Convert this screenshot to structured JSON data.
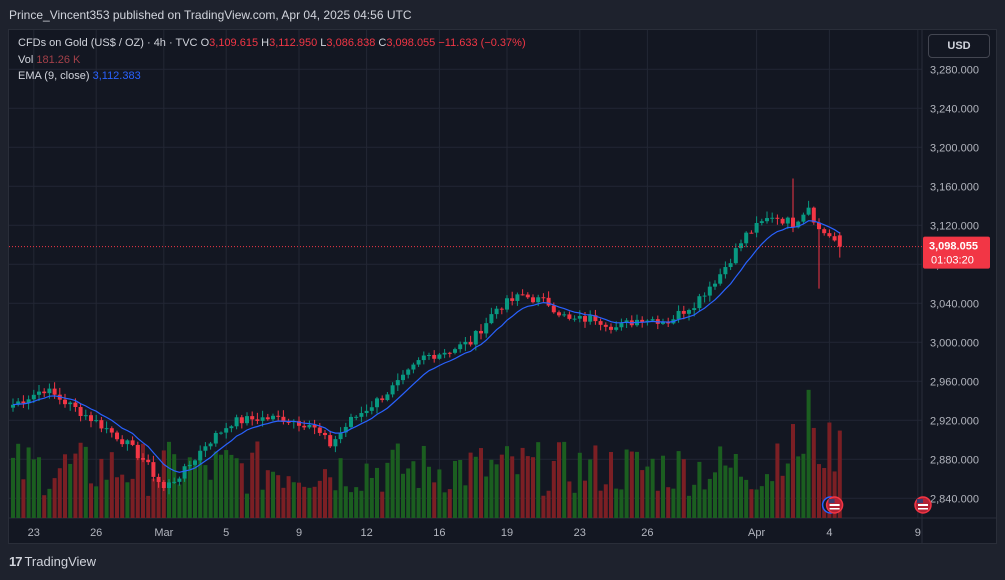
{
  "header": {
    "published_text": "Prince_Vincent353 published on TradingView.com, Apr 04, 2025 04:56 UTC"
  },
  "legend": {
    "symbol": "CFDs on Gold (US$ / OZ) · 4h · TVC",
    "o_label": "O",
    "o_value": "3,109.615",
    "h_label": "H",
    "h_value": "3,112.950",
    "l_label": "L",
    "l_value": "3,086.838",
    "c_label": "C",
    "c_value": "3,098.055",
    "change": "−11.633 (−0.37%)",
    "vol_label": "Vol",
    "vol_value": "181.26 K",
    "ema_label": "EMA (9, close)",
    "ema_value": "3,112.383"
  },
  "currency_button": "USD",
  "footer": {
    "brand": "TradingView",
    "logo_mark": "17"
  },
  "colors": {
    "up": "#089981",
    "down": "#f23645",
    "ema": "#2962ff",
    "vol_up": "#1b5e20",
    "vol_down": "#7b1f24"
  },
  "chart_data": {
    "type": "candlestick",
    "symbol": "CFDs on Gold (US$ / OZ)",
    "interval": "4h",
    "y_range": [
      2830,
      3310
    ],
    "y_ticks": [
      2840,
      2880,
      2920,
      2960,
      3000,
      3040,
      3080,
      3120,
      3160,
      3200,
      3240,
      3280
    ],
    "y_tick_labels": [
      "2,840.000",
      "2,880.000",
      "2,920.000",
      "2,960.000",
      "3,000.000",
      "3,040.000",
      "3,080.000",
      "3,120.000",
      "3,160.000",
      "3,200.000",
      "3,240.000",
      "3,280.000"
    ],
    "x_labels": [
      {
        "label": "23",
        "bar": 4
      },
      {
        "label": "26",
        "bar": 16
      },
      {
        "label": "Mar",
        "bar": 29
      },
      {
        "label": "5",
        "bar": 41
      },
      {
        "label": "9",
        "bar": 55
      },
      {
        "label": "12",
        "bar": 68
      },
      {
        "label": "16",
        "bar": 82
      },
      {
        "label": "19",
        "bar": 95
      },
      {
        "label": "23",
        "bar": 109
      },
      {
        "label": "26",
        "bar": 122
      },
      {
        "label": "Apr",
        "bar": 143
      },
      {
        "label": "4",
        "bar": 157
      },
      {
        "label": "9",
        "bar": 174
      }
    ],
    "last_price": "3,098.055",
    "last_price_value": 3098.055,
    "countdown": "01:03:20",
    "ema_period": 9,
    "anchors": [
      [
        0,
        2936
      ],
      [
        6,
        2952
      ],
      [
        12,
        2932
      ],
      [
        17,
        2915
      ],
      [
        21,
        2900
      ],
      [
        25,
        2880
      ],
      [
        29,
        2850
      ],
      [
        33,
        2868
      ],
      [
        37,
        2895
      ],
      [
        42,
        2918
      ],
      [
        47,
        2922
      ],
      [
        52,
        2922
      ],
      [
        57,
        2916
      ],
      [
        61,
        2895
      ],
      [
        65,
        2920
      ],
      [
        70,
        2940
      ],
      [
        75,
        2962
      ],
      [
        79,
        2985
      ],
      [
        84,
        2992
      ],
      [
        88,
        3000
      ],
      [
        93,
        3035
      ],
      [
        98,
        3048
      ],
      [
        103,
        3040
      ],
      [
        107,
        3022
      ],
      [
        112,
        3025
      ],
      [
        116,
        3015
      ],
      [
        121,
        3025
      ],
      [
        126,
        3022
      ],
      [
        131,
        3040
      ],
      [
        136,
        3070
      ],
      [
        141,
        3110
      ],
      [
        146,
        3130
      ],
      [
        150,
        3122
      ],
      [
        153,
        3140
      ],
      [
        155,
        3115
      ],
      [
        157,
        3110
      ],
      [
        159,
        3098
      ]
    ],
    "spikes": [
      {
        "bar": 150,
        "high": 3168
      },
      {
        "bar": 155,
        "low": 3055
      }
    ],
    "event_markers": [
      {
        "icon": "us-flag-icon",
        "bar": 158,
        "count": 2
      },
      {
        "icon": "us-flag-icon",
        "bar": 175,
        "count": 1
      }
    ]
  }
}
